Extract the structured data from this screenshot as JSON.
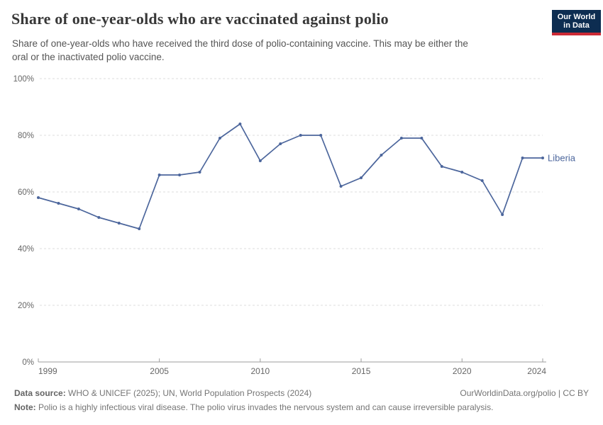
{
  "header": {
    "title": "Share of one-year-olds who are vaccinated against polio",
    "subtitle_line1": "Share of one-year-olds who have received the third dose of polio-containing vaccine. This may be either the",
    "subtitle_line2": "oral or the inactivated polio vaccine."
  },
  "logo": {
    "line1": "Our World",
    "line2": "in Data",
    "bg_color": "#0d2d51",
    "accent_color": "#cc2a35"
  },
  "chart_data": {
    "type": "line",
    "title": "Share of one-year-olds who are vaccinated against polio",
    "entity_label": "Liberia",
    "x": [
      1999,
      2000,
      2001,
      2002,
      2003,
      2004,
      2005,
      2006,
      2007,
      2008,
      2009,
      2010,
      2011,
      2012,
      2013,
      2014,
      2015,
      2016,
      2017,
      2018,
      2019,
      2020,
      2021,
      2022,
      2023,
      2024
    ],
    "values": [
      58,
      56,
      54,
      51,
      49,
      47,
      66,
      66,
      67,
      79,
      84,
      71,
      77,
      80,
      80,
      62,
      65,
      73,
      79,
      79,
      69,
      67,
      64,
      52,
      72,
      72
    ],
    "x_ticks": [
      1999,
      2005,
      2010,
      2015,
      2020,
      2024
    ],
    "y_ticks": [
      0,
      20,
      40,
      60,
      80,
      100
    ],
    "y_tick_suffix": "%",
    "xlim": [
      1999,
      2024
    ],
    "ylim": [
      0,
      100
    ],
    "grid": true,
    "legend_position": "end-of-line",
    "line_color": "#4c669c",
    "grid_color": "#dcdcdc",
    "axis_color": "#9e9e9e",
    "tick_label_color": "#666666"
  },
  "footer": {
    "data_source_label": "Data source:",
    "data_source_text": " WHO & UNICEF (2025); UN, World Population Prospects (2024)",
    "link_text": "OurWorldinData.org/polio | CC BY",
    "note_label": "Note:",
    "note_text": " Polio is a highly infectious viral disease. The polio virus invades the nervous system and can cause irreversible paralysis."
  }
}
